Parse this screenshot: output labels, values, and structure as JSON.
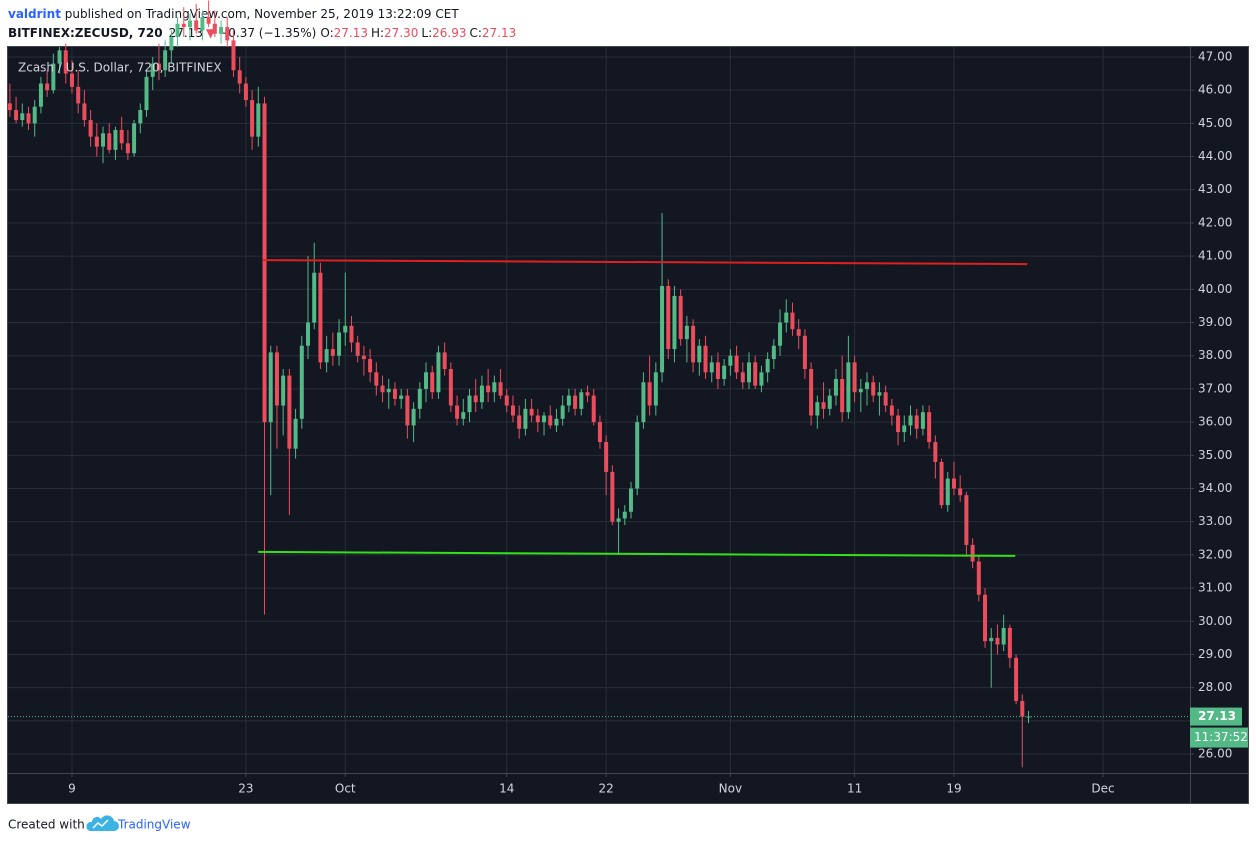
{
  "header": {
    "publisher": "valdrint",
    "published": " published on TradingView.com, November 25, 2019 13:22:09 CET",
    "symbol": "BITFINEX:ZECUSD, 720",
    "last": "27.13",
    "arrow": "▼",
    "change": "−0.37 (−1.35%)",
    "ohlc": [
      {
        "label": "O:",
        "value": "27.13"
      },
      {
        "label": "H:",
        "value": "27.30"
      },
      {
        "label": "L:",
        "value": "26.93"
      },
      {
        "label": "C:",
        "value": "27.13"
      }
    ]
  },
  "chart_data": {
    "type": "candlestick",
    "title": "Zcash / U.S. Dollar, 720, BITFINEX",
    "up_color": "#53b987",
    "down_color": "#eb4d5c",
    "grid": true,
    "x": [
      3,
      3.5,
      4,
      4.5,
      5,
      5.5,
      6,
      6.5,
      7,
      7.5,
      8,
      8.5,
      9,
      9.5,
      10,
      10.5,
      11,
      11.5,
      12,
      12.5,
      13,
      13.5,
      14,
      14.5,
      15,
      15.5,
      16,
      16.5,
      17,
      17.5,
      18,
      18.5,
      19,
      19.5,
      20,
      20.5,
      21,
      21.5,
      22,
      22.5,
      23,
      23.5,
      24,
      24.5,
      25,
      25.5,
      26,
      26.5,
      27,
      27.5,
      28,
      28.5,
      29,
      29.5,
      30,
      30.5,
      31,
      31.5,
      32,
      32.5,
      33,
      33.5,
      34,
      34.5,
      35,
      35.5,
      36,
      36.5,
      37,
      37.5,
      38,
      38.5,
      39,
      39.5,
      40,
      40.5,
      41,
      41.5,
      42,
      42.5,
      43,
      43.5,
      44,
      44.5,
      45,
      45.5,
      46,
      46.5,
      47,
      47.5,
      48,
      48.5,
      49,
      49.5,
      50,
      50.5,
      51,
      51.5,
      52,
      52.5,
      53,
      53.5,
      54,
      54.5,
      55,
      55.5,
      56,
      56.5,
      57,
      57.5,
      58,
      58.5,
      59,
      59.5,
      60,
      60.5,
      61,
      61.5,
      62,
      62.5,
      63,
      63.5,
      64,
      64.5,
      65,
      65.5,
      66,
      66.5,
      67,
      67.5,
      68,
      68.5,
      69,
      69.5,
      70,
      70.5,
      71,
      71.5,
      72,
      72.5,
      73,
      73.5,
      74,
      74.5,
      75,
      75.5,
      76,
      76.5,
      77,
      77.5,
      78,
      78.5,
      79,
      79.5,
      80,
      80.5,
      81,
      81.5,
      82,
      82.5,
      83,
      83.5,
      84,
      84.5,
      85
    ],
    "open": [
      45.6,
      45.4,
      45.1,
      45.3,
      45.0,
      45.5,
      46.2,
      46.0,
      46.8,
      47.2,
      46.5,
      46.1,
      45.6,
      45.1,
      44.6,
      44.3,
      44.7,
      44.2,
      44.8,
      44.4,
      44.1,
      45.0,
      45.4,
      46.4,
      46.8,
      46.6,
      47.2,
      47.6,
      48.0,
      47.9,
      48.1,
      47.8,
      48.2,
      48.0,
      47.7,
      47.9,
      47.5,
      46.6,
      46.2,
      45.7,
      44.6,
      45.6,
      36.0,
      38.1,
      36.5,
      37.4,
      35.2,
      36.1,
      38.3,
      39.0,
      40.5,
      37.8,
      38.2,
      38.0,
      38.7,
      38.9,
      38.4,
      38.0,
      37.9,
      37.5,
      37.1,
      36.9,
      37.0,
      36.7,
      36.8,
      35.9,
      36.4,
      37.0,
      37.5,
      36.9,
      38.1,
      37.6,
      36.5,
      36.1,
      36.3,
      36.8,
      36.6,
      37.1,
      36.9,
      37.2,
      36.8,
      36.5,
      36.2,
      35.8,
      36.4,
      36.2,
      36.0,
      36.2,
      35.9,
      36.1,
      36.5,
      36.8,
      36.4,
      36.9,
      36.8,
      36.0,
      35.4,
      34.5,
      33.0,
      33.1,
      33.3,
      34.0,
      36.0,
      37.2,
      36.5,
      37.5,
      40.1,
      38.2,
      39.8,
      38.5,
      38.9,
      37.8,
      38.3,
      37.5,
      37.8,
      37.3,
      37.7,
      38.0,
      37.5,
      37.2,
      37.8,
      37.1,
      37.5,
      37.9,
      38.3,
      39.0,
      39.3,
      38.8,
      38.6,
      37.6,
      36.2,
      36.6,
      36.4,
      36.8,
      37.3,
      36.3,
      37.8,
      36.9,
      37.0,
      37.2,
      36.8,
      36.9,
      36.5,
      36.2,
      35.7,
      35.9,
      36.2,
      35.8,
      36.3,
      35.4,
      34.8,
      33.5,
      34.3,
      34.0,
      33.8,
      32.3,
      31.8,
      30.8,
      29.4,
      29.5,
      29.3,
      29.8,
      28.9,
      27.6,
      27.13
    ],
    "high": [
      46.2,
      45.8,
      45.6,
      45.5,
      45.7,
      46.4,
      46.6,
      47.1,
      47.3,
      47.4,
      46.9,
      46.6,
      46.0,
      45.4,
      45.0,
      44.9,
      45.0,
      44.9,
      45.2,
      44.8,
      45.1,
      45.6,
      46.6,
      47.0,
      47.4,
      47.5,
      47.8,
      48.2,
      48.5,
      48.3,
      48.6,
      48.4,
      48.7,
      48.4,
      48.1,
      48.2,
      47.8,
      47.0,
      46.4,
      46.0,
      46.1,
      45.8,
      38.3,
      38.3,
      37.6,
      37.6,
      36.4,
      38.6,
      41.0,
      41.4,
      40.8,
      38.6,
      38.7,
      39.1,
      40.5,
      39.2,
      38.6,
      38.3,
      38.2,
      37.8,
      37.4,
      37.3,
      37.2,
      37.0,
      37.0,
      36.6,
      37.2,
      37.8,
      37.7,
      38.3,
      38.4,
      37.8,
      36.8,
      36.7,
      37.0,
      37.3,
      37.4,
      37.6,
      37.4,
      37.6,
      37.0,
      36.8,
      36.5,
      36.7,
      36.7,
      36.4,
      36.3,
      36.5,
      36.4,
      36.8,
      37.0,
      37.0,
      37.0,
      37.1,
      37.0,
      36.2,
      35.6,
      34.7,
      33.4,
      33.5,
      34.2,
      36.2,
      37.5,
      38.0,
      37.8,
      42.3,
      40.3,
      40.1,
      40.0,
      39.2,
      39.1,
      38.5,
      38.6,
      38.0,
      38.1,
      37.9,
      38.2,
      38.3,
      37.8,
      38.1,
      38.0,
      37.7,
      38.1,
      38.5,
      39.4,
      39.7,
      39.6,
      39.1,
      38.8,
      37.8,
      36.8,
      37.2,
      37.0,
      37.6,
      38.0,
      38.6,
      38.0,
      37.3,
      37.5,
      37.4,
      37.2,
      37.1,
      36.7,
      36.4,
      36.2,
      36.5,
      36.4,
      36.5,
      36.5,
      35.6,
      34.9,
      34.5,
      34.8,
      34.4,
      33.9,
      32.5,
      32.0,
      31.0,
      29.8,
      29.9,
      30.2,
      29.9,
      29.0,
      27.8,
      27.3
    ],
    "low": [
      45.2,
      45.0,
      44.9,
      44.8,
      44.6,
      45.3,
      45.8,
      45.9,
      46.5,
      46.2,
      45.9,
      45.3,
      44.9,
      44.3,
      44.0,
      43.8,
      44.1,
      43.9,
      44.2,
      43.9,
      44.0,
      44.7,
      45.2,
      46.0,
      46.3,
      46.4,
      46.8,
      47.3,
      47.6,
      47.5,
      47.7,
      47.5,
      47.9,
      47.6,
      47.4,
      47.3,
      46.4,
      45.9,
      45.5,
      44.2,
      44.3,
      30.2,
      33.8,
      35.2,
      35.6,
      33.2,
      34.9,
      35.8,
      37.9,
      38.8,
      37.6,
      37.5,
      37.7,
      37.7,
      38.3,
      38.1,
      37.8,
      37.4,
      37.2,
      36.8,
      36.6,
      36.4,
      36.5,
      36.4,
      35.5,
      35.4,
      36.1,
      36.6,
      36.7,
      36.7,
      37.4,
      36.3,
      35.9,
      35.9,
      36.0,
      36.3,
      36.4,
      36.6,
      36.6,
      36.7,
      36.3,
      36.0,
      35.5,
      35.6,
      36.0,
      35.7,
      35.6,
      35.8,
      35.7,
      35.9,
      36.3,
      36.2,
      36.2,
      36.6,
      35.9,
      35.2,
      33.8,
      32.9,
      32.0,
      32.9,
      33.1,
      33.8,
      35.8,
      36.2,
      36.2,
      37.2,
      37.9,
      37.8,
      38.3,
      37.8,
      37.5,
      37.4,
      37.3,
      37.2,
      37.0,
      37.1,
      37.4,
      37.3,
      37.0,
      37.0,
      37.0,
      36.9,
      37.2,
      37.6,
      38.0,
      38.7,
      38.6,
      38.2,
      37.3,
      35.9,
      35.8,
      36.1,
      36.2,
      36.5,
      36.0,
      36.1,
      36.6,
      36.3,
      36.5,
      36.6,
      36.2,
      36.3,
      35.9,
      35.3,
      35.4,
      35.6,
      35.5,
      35.6,
      35.2,
      34.3,
      33.4,
      33.3,
      33.8,
      33.6,
      32.0,
      31.6,
      30.6,
      29.2,
      28.0,
      29.0,
      29.1,
      28.6,
      27.5,
      25.6,
      26.93
    ],
    "close": [
      45.4,
      45.1,
      45.3,
      45.0,
      45.5,
      46.2,
      46.0,
      46.8,
      47.2,
      46.5,
      46.1,
      45.6,
      45.1,
      44.6,
      44.3,
      44.7,
      44.2,
      44.8,
      44.4,
      44.1,
      45.0,
      45.4,
      46.4,
      46.8,
      46.6,
      47.2,
      47.6,
      48.0,
      47.9,
      48.1,
      47.8,
      48.2,
      48.0,
      47.7,
      47.9,
      47.5,
      46.6,
      46.2,
      45.7,
      44.6,
      45.6,
      36.0,
      38.1,
      36.5,
      37.4,
      35.2,
      36.1,
      38.3,
      39.0,
      40.5,
      37.8,
      38.2,
      38.0,
      38.7,
      38.9,
      38.4,
      38.0,
      37.9,
      37.5,
      37.1,
      36.9,
      37.0,
      36.7,
      36.8,
      35.9,
      36.4,
      37.0,
      37.5,
      36.9,
      38.1,
      37.6,
      36.5,
      36.1,
      36.3,
      36.8,
      36.6,
      37.1,
      36.9,
      37.2,
      36.8,
      36.5,
      36.2,
      35.8,
      36.4,
      36.2,
      36.0,
      36.2,
      35.9,
      36.1,
      36.5,
      36.8,
      36.4,
      36.9,
      36.8,
      36.0,
      35.4,
      34.5,
      33.0,
      33.1,
      33.3,
      34.0,
      36.0,
      37.2,
      36.5,
      37.5,
      40.1,
      38.2,
      39.8,
      38.5,
      38.9,
      37.8,
      38.3,
      37.5,
      37.8,
      37.3,
      37.7,
      38.0,
      37.5,
      37.2,
      37.8,
      37.1,
      37.5,
      37.9,
      38.3,
      39.0,
      39.3,
      38.8,
      38.6,
      37.6,
      36.2,
      36.6,
      36.4,
      36.8,
      37.3,
      36.3,
      37.8,
      36.9,
      37.0,
      37.2,
      36.8,
      36.9,
      36.5,
      36.2,
      35.7,
      35.9,
      36.2,
      35.8,
      36.3,
      35.4,
      34.8,
      33.5,
      34.3,
      34.0,
      33.8,
      32.3,
      31.8,
      30.8,
      29.4,
      29.5,
      29.3,
      29.8,
      28.9,
      27.6,
      27.13,
      27.13
    ],
    "xlim": [
      2.85,
      98.0
    ],
    "xticks": [
      {
        "value": 8,
        "label": "9"
      },
      {
        "value": 22,
        "label": "23"
      },
      {
        "value": 30,
        "label": "Oct"
      },
      {
        "value": 43,
        "label": "14"
      },
      {
        "value": 51,
        "label": "22"
      },
      {
        "value": 61,
        "label": "Nov"
      },
      {
        "value": 71,
        "label": "11"
      },
      {
        "value": 79,
        "label": "19"
      },
      {
        "value": 91,
        "label": "Dec"
      }
    ],
    "ylim": [
      25.43,
      47.3
    ],
    "yticks": [
      {
        "value": 26,
        "label": "26.00"
      },
      {
        "value": 27,
        "label": "27.00"
      },
      {
        "value": 28,
        "label": "28.00"
      },
      {
        "value": 29,
        "label": "29.00"
      },
      {
        "value": 30,
        "label": "30.00"
      },
      {
        "value": 31,
        "label": "31.00"
      },
      {
        "value": 32,
        "label": "32.00"
      },
      {
        "value": 33,
        "label": "33.00"
      },
      {
        "value": 34,
        "label": "34.00"
      },
      {
        "value": 35,
        "label": "35.00"
      },
      {
        "value": 36,
        "label": "36.00"
      },
      {
        "value": 37,
        "label": "37.00"
      },
      {
        "value": 38,
        "label": "38.00"
      },
      {
        "value": 39,
        "label": "39.00"
      },
      {
        "value": 40,
        "label": "40.00"
      },
      {
        "value": 41,
        "label": "41.00"
      },
      {
        "value": 42,
        "label": "42.00"
      },
      {
        "value": 43,
        "label": "43.00"
      },
      {
        "value": 44,
        "label": "44.00"
      },
      {
        "value": 45,
        "label": "45.00"
      },
      {
        "value": 46,
        "label": "46.00"
      },
      {
        "value": 47,
        "label": "47.00"
      }
    ],
    "lines": [
      {
        "color": "#e0201e",
        "x": [
          23.38,
          84.9
        ],
        "y": [
          40.88,
          40.76
        ]
      },
      {
        "color": "#33e01a",
        "x": [
          22.98,
          83.93
        ],
        "y": [
          32.09,
          31.97
        ]
      }
    ],
    "last_price": {
      "value": 27.13,
      "label": "27.13"
    },
    "countdown": "11:37:52"
  },
  "footer": {
    "created": "Created with",
    "brand": "TradingView"
  }
}
